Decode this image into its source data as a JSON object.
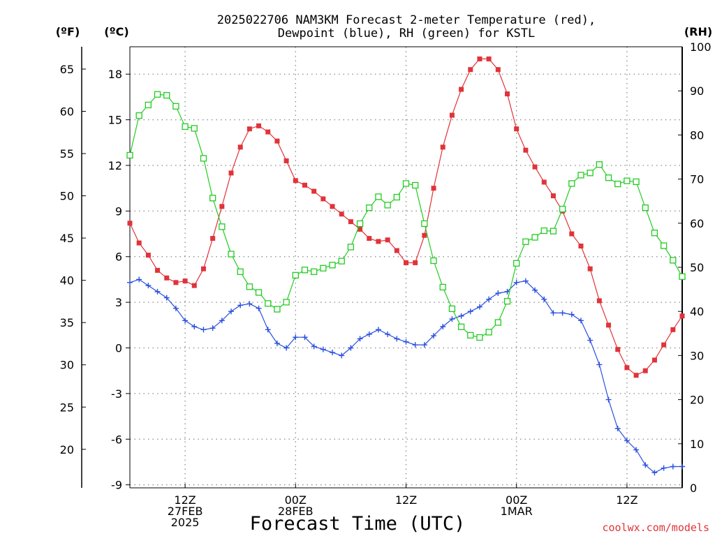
{
  "chart_data": {
    "type": "line",
    "title_lines": [
      "2025022706 NAM3KM Forecast 2-meter Temperature (red),",
      "Dewpoint (blue), RH (green) for KSTL"
    ],
    "xlabel": "Forecast Time (UTC)",
    "credit": "coolwx.com/models",
    "unit_labels": {
      "fahrenheit": "(ºF)",
      "celsius": "(ºC)",
      "rh": "(RH)"
    },
    "x_start_hour": 6,
    "x_end_hour": 66,
    "x_ticks": [
      {
        "hour": 12,
        "labels": [
          "12Z",
          "27FEB",
          "2025"
        ]
      },
      {
        "hour": 24,
        "labels": [
          "00Z",
          "28FEB"
        ]
      },
      {
        "hour": 36,
        "labels": [
          "12Z"
        ]
      },
      {
        "hour": 48,
        "labels": [
          "00Z",
          "1MAR"
        ]
      },
      {
        "hour": 60,
        "labels": [
          "12Z"
        ]
      }
    ],
    "celsius_axis": {
      "min": -9.2,
      "max": 19.8,
      "ticks": [
        -9,
        -6,
        -3,
        0,
        3,
        6,
        9,
        12,
        15,
        18
      ]
    },
    "fahrenheit_axis": {
      "ticks": [
        20,
        25,
        30,
        35,
        40,
        45,
        50,
        55,
        60,
        65
      ]
    },
    "rh_axis": {
      "min": 0,
      "max": 100,
      "ticks": [
        0,
        10,
        20,
        30,
        40,
        50,
        60,
        70,
        80,
        90,
        100
      ]
    },
    "grid": true,
    "series": [
      {
        "name": "2-meter Temperature",
        "color": "#e0333a",
        "marker": "filled-square",
        "axis": "celsius",
        "values": [
          8.2,
          6.9,
          6.1,
          5.1,
          4.6,
          4.3,
          4.4,
          4.1,
          5.2,
          7.2,
          9.3,
          11.5,
          13.2,
          14.4,
          14.6,
          14.2,
          13.6,
          12.3,
          11.0,
          10.7,
          10.3,
          9.8,
          9.3,
          8.8,
          8.3,
          7.8,
          7.2,
          7.0,
          7.1,
          6.4,
          5.6,
          5.6,
          7.4,
          10.5,
          13.2,
          15.3,
          17.0,
          18.3,
          19.0,
          19.0,
          18.3,
          16.7,
          14.4,
          13.0,
          11.9,
          10.9,
          10.0,
          9.0,
          7.5,
          6.7,
          5.2,
          3.1,
          1.5,
          -0.1,
          -1.3,
          -1.8,
          -1.5,
          -0.8,
          0.2,
          1.2,
          2.1
        ]
      },
      {
        "name": "Dewpoint",
        "color": "#2a4fe0",
        "marker": "plus",
        "axis": "celsius",
        "values": [
          4.3,
          4.5,
          4.1,
          3.7,
          3.3,
          2.6,
          1.8,
          1.4,
          1.2,
          1.3,
          1.8,
          2.4,
          2.8,
          2.9,
          2.6,
          1.2,
          0.3,
          0.0,
          0.7,
          0.7,
          0.1,
          -0.1,
          -0.3,
          -0.5,
          0.0,
          0.6,
          0.9,
          1.2,
          0.9,
          0.6,
          0.4,
          0.2,
          0.2,
          0.8,
          1.4,
          1.9,
          2.1,
          2.4,
          2.7,
          3.2,
          3.6,
          3.7,
          4.3,
          4.4,
          3.8,
          3.2,
          2.3,
          2.3,
          2.2,
          1.8,
          0.5,
          -1.1,
          -3.4,
          -5.3,
          -6.1,
          -6.7,
          -7.7,
          -8.2,
          -7.9,
          -7.8,
          -7.8
        ]
      },
      {
        "name": "RH",
        "color": "#22cc22",
        "marker": "open-square",
        "axis": "rh",
        "values": [
          75.4,
          84.4,
          86.8,
          89.2,
          89.0,
          86.5,
          81.9,
          81.5,
          74.7,
          65.7,
          59.2,
          53.0,
          49.0,
          45.6,
          44.3,
          41.8,
          40.5,
          42.1,
          48.2,
          49.4,
          49.0,
          49.8,
          50.5,
          51.4,
          54.6,
          59.9,
          63.5,
          66.0,
          64.1,
          65.9,
          69.0,
          68.6,
          59.9,
          51.5,
          45.5,
          40.6,
          36.5,
          34.6,
          34.1,
          35.3,
          37.5,
          42.3,
          50.9,
          55.8,
          56.8,
          58.3,
          58.2,
          63.2,
          69.0,
          70.9,
          71.4,
          73.3,
          70.3,
          68.9,
          69.6,
          69.4,
          63.5,
          57.8,
          54.9,
          51.6,
          47.9
        ]
      }
    ]
  }
}
